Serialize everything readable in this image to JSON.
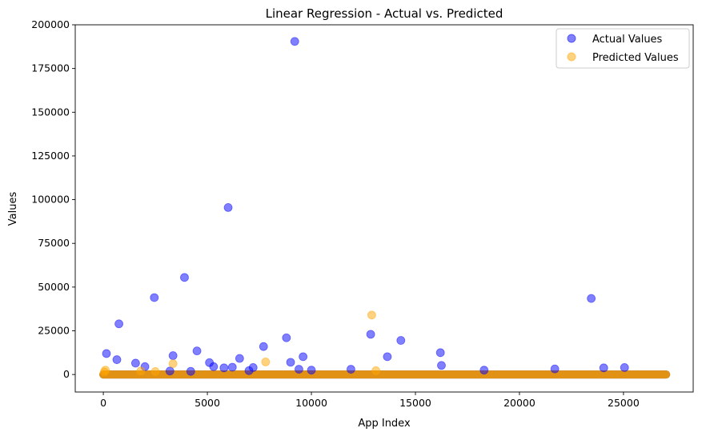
{
  "chart_data": {
    "type": "scatter",
    "title": "Linear Regression - Actual vs. Predicted",
    "xlabel": "App Index",
    "ylabel": "Values",
    "xlim": [
      -1350,
      28350
    ],
    "ylim": [
      -10000,
      200000
    ],
    "xticks": [
      0,
      5000,
      10000,
      15000,
      20000,
      25000
    ],
    "yticks": [
      0,
      25000,
      50000,
      75000,
      100000,
      125000,
      150000,
      175000,
      200000
    ],
    "grid": false,
    "legend_position": "top-right",
    "series": [
      {
        "name": "Actual Values",
        "color": "#0000ff",
        "alpha": 0.5,
        "x": [
          9200,
          6000,
          3900,
          2450,
          750,
          23450,
          12850,
          8800,
          14300,
          7700,
          4500,
          16200,
          150,
          3350,
          13650,
          9600,
          650,
          6550,
          5100,
          1550,
          9000,
          16250,
          25050,
          24050,
          2000,
          21700,
          5300,
          5800,
          6200,
          7200,
          9400,
          11900,
          18300,
          10000,
          3200,
          4200,
          7000
        ],
        "y": [
          190500,
          95500,
          55500,
          44000,
          29000,
          43500,
          23000,
          21000,
          19500,
          16000,
          13500,
          12500,
          12000,
          10800,
          10200,
          10200,
          8500,
          9200,
          6800,
          6500,
          7000,
          5200,
          4000,
          3800,
          4500,
          3200,
          4500,
          3800,
          4200,
          4000,
          3000,
          3000,
          2500,
          2500,
          2000,
          1800,
          2200
        ]
      },
      {
        "name": "Predicted Values",
        "color": "#ffa500",
        "alpha": 0.5,
        "x": [
          12900,
          3350,
          7800,
          100,
          50,
          1800,
          13100,
          2500
        ],
        "y": [
          34000,
          6200,
          7200,
          2500,
          1500,
          2000,
          2200,
          1700
        ]
      }
    ],
    "dense_band": {
      "x_start": 0,
      "x_end": 27050
    }
  }
}
